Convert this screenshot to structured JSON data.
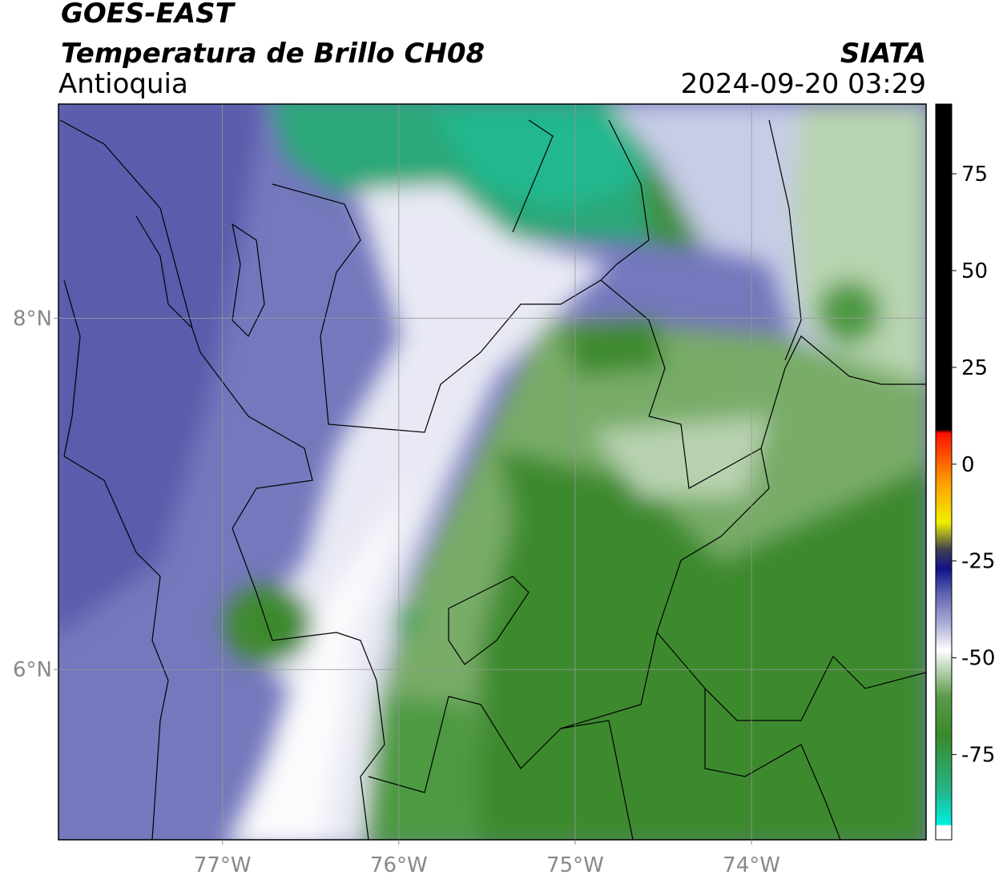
{
  "header": {
    "satellite": "GOES-EAST",
    "product": "Temperatura de Brillo CH08",
    "region": "Antioquia",
    "source": "SIATA",
    "datetime": "2024-09-20 03:29"
  },
  "map": {
    "lonlim": [
      -77.93,
      -73.01
    ],
    "latlim": [
      5.03,
      9.22
    ],
    "xticks": [
      {
        "value": -77,
        "label": "77°W"
      },
      {
        "value": -76,
        "label": "76°W"
      },
      {
        "value": -75,
        "label": "75°W"
      },
      {
        "value": -74,
        "label": "74°W"
      }
    ],
    "yticks": [
      {
        "value": 8,
        "label": "8°N"
      },
      {
        "value": 6,
        "label": "6°N"
      }
    ],
    "grid": true
  },
  "colorbar": {
    "clim": [
      -97,
      93
    ],
    "ticks": [
      75,
      50,
      25,
      0,
      -25,
      -50,
      -75
    ],
    "stops": [
      {
        "value": -97,
        "color": "#ffffff"
      },
      {
        "value": -93.5,
        "color": "#ffffff"
      },
      {
        "value": -93,
        "color": "#00f0e0"
      },
      {
        "value": -85,
        "color": "#20b890"
      },
      {
        "value": -70,
        "color": "#3a8a2a"
      },
      {
        "value": -60,
        "color": "#5a9a4a"
      },
      {
        "value": -52,
        "color": "#c8dcc0"
      },
      {
        "value": -48,
        "color": "#ffffff"
      },
      {
        "value": -42,
        "color": "#b4b6dc"
      },
      {
        "value": -33,
        "color": "#5a5eac"
      },
      {
        "value": -27,
        "color": "#10108a"
      },
      {
        "value": -22,
        "color": "#404050"
      },
      {
        "value": -15,
        "color": "#f0f000"
      },
      {
        "value": -5,
        "color": "#ffa000"
      },
      {
        "value": 8,
        "color": "#ff1000"
      },
      {
        "value": 9,
        "color": "#000000"
      },
      {
        "value": 93,
        "color": "#000000"
      }
    ]
  }
}
